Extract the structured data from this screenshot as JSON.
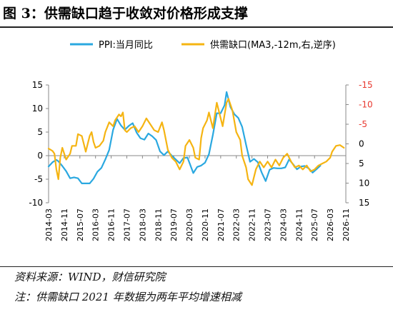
{
  "title": "图 3：供需缺口趋于收敛对价格形成支撑",
  "source": "资料来源：WIND，财信研究院",
  "note": "注：供需缺口 2021 年数据为两年平均增速相减",
  "colors": {
    "ppi": "#2aa8e0",
    "gap": "#f5b412",
    "axis_right_text": "#e8382f",
    "axis_left_text": "#000000"
  },
  "chart_data": {
    "type": "line",
    "legend_position": "top",
    "grid": false,
    "x_ticks": [
      "2014-03",
      "2014-11",
      "2015-07",
      "2016-03",
      "2016-11",
      "2017-07",
      "2018-03",
      "2018-11",
      "2019-07",
      "2020-03",
      "2020-11",
      "2021-07",
      "2022-03",
      "2022-11",
      "2023-07",
      "2024-03",
      "2024-11",
      "2025-07",
      "2026-03",
      "2026-11"
    ],
    "y_left": {
      "ticks": [
        15,
        10,
        5,
        0,
        -5,
        -10
      ],
      "lim": [
        -10,
        15
      ]
    },
    "y_right": {
      "ticks": [
        -15,
        -10,
        -5,
        0,
        5,
        10,
        15
      ],
      "lim": [
        -15,
        15
      ],
      "inverted": true
    },
    "series": [
      {
        "name": "PPI:当月同比",
        "axis": "left",
        "color": "#2aa8e0",
        "points": [
          [
            "2014-03",
            -2.3
          ],
          [
            "2014-05",
            -1.4
          ],
          [
            "2014-07",
            -0.9
          ],
          [
            "2014-08",
            -1.2
          ],
          [
            "2014-10",
            -2.2
          ],
          [
            "2014-12",
            -3.3
          ],
          [
            "2015-02",
            -4.8
          ],
          [
            "2015-04",
            -4.6
          ],
          [
            "2015-06",
            -4.8
          ],
          [
            "2015-08",
            -5.9
          ],
          [
            "2015-10",
            -5.9
          ],
          [
            "2015-12",
            -5.9
          ],
          [
            "2016-02",
            -4.9
          ],
          [
            "2016-04",
            -3.4
          ],
          [
            "2016-06",
            -2.6
          ],
          [
            "2016-08",
            -0.8
          ],
          [
            "2016-10",
            1.2
          ],
          [
            "2016-12",
            5.5
          ],
          [
            "2017-02",
            7.8
          ],
          [
            "2017-04",
            6.4
          ],
          [
            "2017-06",
            5.5
          ],
          [
            "2017-08",
            6.3
          ],
          [
            "2017-10",
            6.9
          ],
          [
            "2017-12",
            4.9
          ],
          [
            "2018-02",
            3.7
          ],
          [
            "2018-04",
            3.4
          ],
          [
            "2018-06",
            4.7
          ],
          [
            "2018-08",
            4.1
          ],
          [
            "2018-10",
            3.3
          ],
          [
            "2018-12",
            0.9
          ],
          [
            "2019-02",
            0.1
          ],
          [
            "2019-04",
            0.9
          ],
          [
            "2019-06",
            0.0
          ],
          [
            "2019-08",
            -0.8
          ],
          [
            "2019-10",
            -1.6
          ],
          [
            "2019-12",
            -0.5
          ],
          [
            "2020-02",
            -0.4
          ],
          [
            "2020-03",
            -1.5
          ],
          [
            "2020-05",
            -3.7
          ],
          [
            "2020-07",
            -2.4
          ],
          [
            "2020-09",
            -2.1
          ],
          [
            "2020-11",
            -1.5
          ],
          [
            "2021-01",
            0.3
          ],
          [
            "2021-03",
            4.4
          ],
          [
            "2021-05",
            9.0
          ],
          [
            "2021-07",
            9.0
          ],
          [
            "2021-09",
            10.7
          ],
          [
            "2021-10",
            13.5
          ],
          [
            "2021-12",
            10.3
          ],
          [
            "2022-02",
            8.8
          ],
          [
            "2022-04",
            8.0
          ],
          [
            "2022-06",
            6.1
          ],
          [
            "2022-08",
            2.3
          ],
          [
            "2022-10",
            -1.3
          ],
          [
            "2022-12",
            -0.7
          ],
          [
            "2023-02",
            -1.4
          ],
          [
            "2023-04",
            -3.6
          ],
          [
            "2023-06",
            -5.4
          ],
          [
            "2023-08",
            -3.0
          ],
          [
            "2023-10",
            -2.6
          ],
          [
            "2023-12",
            -2.7
          ],
          [
            "2024-02",
            -2.7
          ],
          [
            "2024-04",
            -2.5
          ],
          [
            "2024-06",
            -0.8
          ],
          [
            "2024-08",
            -1.8
          ],
          [
            "2024-10",
            -2.9
          ],
          [
            "2024-12",
            -2.3
          ],
          [
            "2025-02",
            -2.2
          ],
          [
            "2025-04",
            -2.7
          ],
          [
            "2025-06",
            -3.6
          ],
          [
            "2025-08",
            -2.9
          ],
          [
            "2025-10",
            -2.1
          ]
        ]
      },
      {
        "name": "供需缺口(MA3,-12m,右,逆序)",
        "axis": "right",
        "color": "#f5b412",
        "points": [
          [
            "2014-03",
            1.2
          ],
          [
            "2014-05",
            1.8
          ],
          [
            "2014-06",
            2.5
          ],
          [
            "2014-07",
            6.5
          ],
          [
            "2014-08",
            9.0
          ],
          [
            "2014-09",
            3.5
          ],
          [
            "2014-10",
            1.0
          ],
          [
            "2014-12",
            4.0
          ],
          [
            "2015-02",
            2.5
          ],
          [
            "2015-03",
            0.5
          ],
          [
            "2015-05",
            0.5
          ],
          [
            "2015-06",
            -2.5
          ],
          [
            "2015-08",
            -2.0
          ],
          [
            "2015-09",
            0.0
          ],
          [
            "2015-10",
            2.0
          ],
          [
            "2015-12",
            -2.0
          ],
          [
            "2016-01",
            -3.0
          ],
          [
            "2016-02",
            -0.5
          ],
          [
            "2016-03",
            1.0
          ],
          [
            "2016-05",
            0.5
          ],
          [
            "2016-07",
            -0.8
          ],
          [
            "2016-08",
            -3.0
          ],
          [
            "2016-10",
            -5.5
          ],
          [
            "2016-12",
            -4.5
          ],
          [
            "2017-01",
            -6.0
          ],
          [
            "2017-03",
            -7.5
          ],
          [
            "2017-04",
            -7.0
          ],
          [
            "2017-05",
            -8.0
          ],
          [
            "2017-06",
            -3.5
          ],
          [
            "2017-07",
            -3.0
          ],
          [
            "2017-09",
            -4.0
          ],
          [
            "2017-11",
            -4.5
          ],
          [
            "2018-01",
            -3.0
          ],
          [
            "2018-03",
            -4.5
          ],
          [
            "2018-05",
            -6.5
          ],
          [
            "2018-07",
            -5.0
          ],
          [
            "2018-09",
            -3.5
          ],
          [
            "2018-11",
            -3.0
          ],
          [
            "2019-01",
            -5.5
          ],
          [
            "2019-02",
            -3.5
          ],
          [
            "2019-04",
            1.5
          ],
          [
            "2019-06",
            3.5
          ],
          [
            "2019-08",
            4.5
          ],
          [
            "2019-10",
            6.5
          ],
          [
            "2019-12",
            4.5
          ],
          [
            "2020-01",
            0.5
          ],
          [
            "2020-03",
            -1.0
          ],
          [
            "2020-05",
            1.0
          ],
          [
            "2020-06",
            3.5
          ],
          [
            "2020-08",
            4.0
          ],
          [
            "2020-09",
            -1.5
          ],
          [
            "2020-10",
            -4.0
          ],
          [
            "2020-12",
            -6.0
          ],
          [
            "2021-01",
            -8.0
          ],
          [
            "2021-03",
            -4.0
          ],
          [
            "2021-05",
            -10.5
          ],
          [
            "2021-06",
            -8.5
          ],
          [
            "2021-08",
            -4.5
          ],
          [
            "2021-10",
            -10.5
          ],
          [
            "2021-11",
            -11.5
          ],
          [
            "2022-01",
            -8.5
          ],
          [
            "2022-03",
            -3.0
          ],
          [
            "2022-05",
            -1.0
          ],
          [
            "2022-06",
            3.0
          ],
          [
            "2022-08",
            6.0
          ],
          [
            "2022-09",
            9.0
          ],
          [
            "2022-11",
            10.5
          ],
          [
            "2023-01",
            6.5
          ],
          [
            "2023-03",
            4.5
          ],
          [
            "2023-05",
            6.0
          ],
          [
            "2023-07",
            4.5
          ],
          [
            "2023-09",
            6.0
          ],
          [
            "2023-11",
            4.0
          ],
          [
            "2024-01",
            5.5
          ],
          [
            "2024-03",
            3.5
          ],
          [
            "2024-05",
            2.5
          ],
          [
            "2024-07",
            4.5
          ],
          [
            "2024-09",
            6.0
          ],
          [
            "2024-11",
            5.5
          ],
          [
            "2025-01",
            6.5
          ],
          [
            "2025-03",
            5.5
          ],
          [
            "2025-05",
            7.0
          ],
          [
            "2025-07",
            6.5
          ],
          [
            "2025-09",
            5.5
          ],
          [
            "2025-11",
            5.0
          ],
          [
            "2026-01",
            4.5
          ],
          [
            "2026-03",
            3.5
          ],
          [
            "2026-04",
            2.0
          ],
          [
            "2026-06",
            0.5
          ],
          [
            "2026-08",
            0.3
          ],
          [
            "2026-10",
            1.0
          ]
        ]
      }
    ]
  }
}
